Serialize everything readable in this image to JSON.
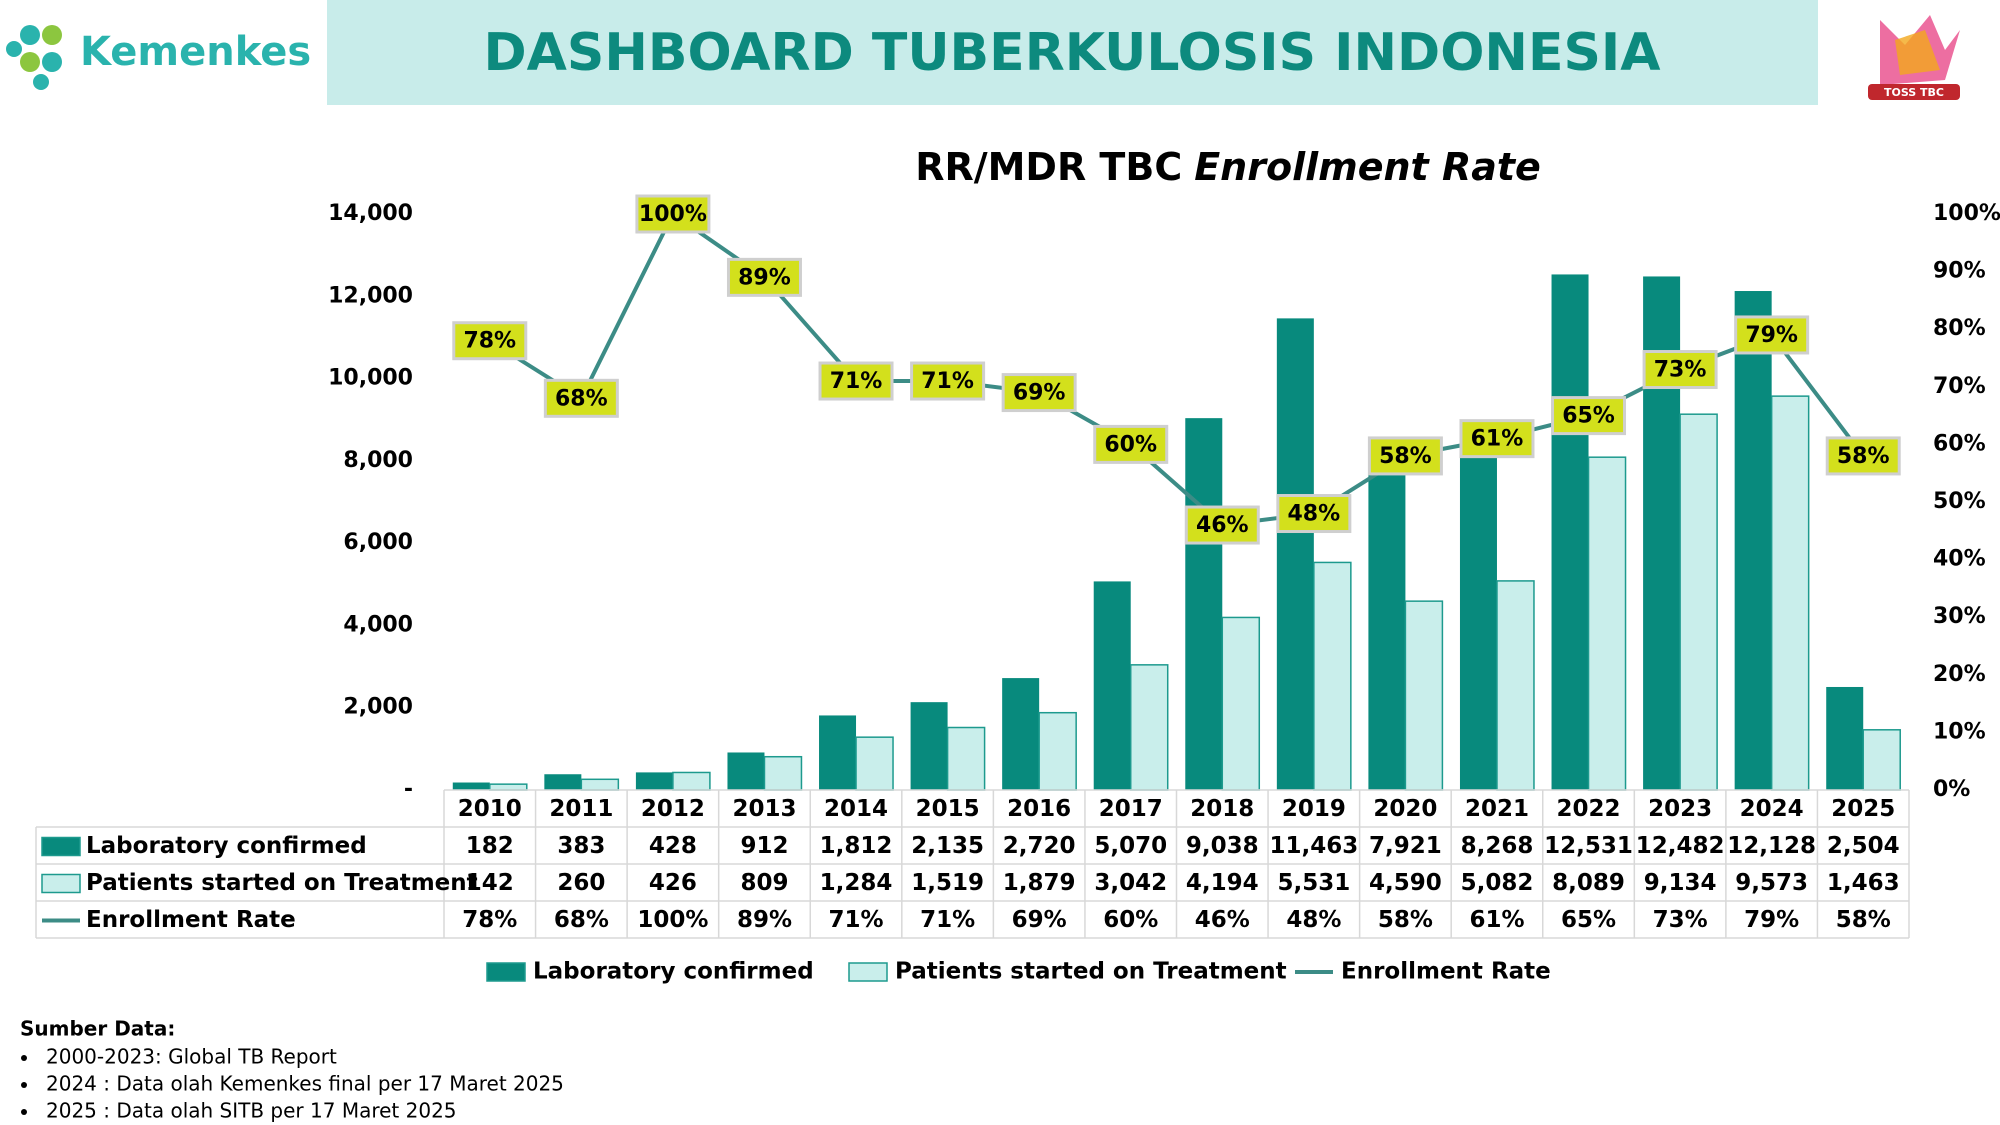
{
  "header": {
    "logo_text": "Kemenkes",
    "title": "DASHBOARD TUBERKULOSIS INDONESIA",
    "badge_text": "TOSS TBC"
  },
  "chart_data": {
    "type": "bar-line-table",
    "title_parts": [
      "RR/MDR TBC",
      "Enrollment Rate"
    ],
    "categories": [
      "2010",
      "2011",
      "2012",
      "2013",
      "2014",
      "2015",
      "2016",
      "2017",
      "2018",
      "2019",
      "2020",
      "2021",
      "2022",
      "2023",
      "2024",
      "2025"
    ],
    "series": [
      {
        "name": "Laboratory confirmed",
        "kind": "bar",
        "color": "#088a7d",
        "values": [
          182,
          383,
          428,
          912,
          1812,
          2135,
          2720,
          5070,
          9038,
          11463,
          7921,
          8268,
          12531,
          12482,
          12128,
          2504
        ],
        "value_labels": [
          "182",
          "383",
          "428",
          "912",
          "1,812",
          "2,135",
          "2,720",
          "5,070",
          "9,038",
          "11,463",
          "7,921",
          "8,268",
          "12,531",
          "12,482",
          "12,128",
          "2,504"
        ]
      },
      {
        "name": "Patients started on Treatment",
        "kind": "bar",
        "color": "#c9eeeb",
        "values": [
          142,
          260,
          426,
          809,
          1284,
          1519,
          1879,
          3042,
          4194,
          5531,
          4590,
          5082,
          8089,
          9134,
          9573,
          1463
        ],
        "value_labels": [
          "142",
          "260",
          "426",
          "809",
          "1,284",
          "1,519",
          "1,879",
          "3,042",
          "4,194",
          "5,531",
          "4,590",
          "5,082",
          "8,089",
          "9,134",
          "9,573",
          "1,463"
        ]
      },
      {
        "name": "Enrollment Rate",
        "kind": "line",
        "axis": "y2",
        "color": "#3c8c86",
        "values": [
          78,
          68,
          100,
          89,
          71,
          71,
          69,
          60,
          46,
          48,
          58,
          61,
          65,
          73,
          79,
          58
        ],
        "value_labels": [
          "78%",
          "68%",
          "100%",
          "89%",
          "71%",
          "71%",
          "69%",
          "60%",
          "46%",
          "48%",
          "58%",
          "61%",
          "65%",
          "73%",
          "79%",
          "58%"
        ]
      }
    ],
    "ylim": [
      0,
      14000
    ],
    "yticks": [
      {
        "value": 0,
        "label": "-"
      },
      {
        "value": 2000,
        "label": "2,000"
      },
      {
        "value": 4000,
        "label": "4,000"
      },
      {
        "value": 6000,
        "label": "6,000"
      },
      {
        "value": 8000,
        "label": "8,000"
      },
      {
        "value": 10000,
        "label": "10,000"
      },
      {
        "value": 12000,
        "label": "12,000"
      },
      {
        "value": 14000,
        "label": "14,000"
      }
    ],
    "y2lim": [
      0,
      100
    ],
    "y2ticks": [
      {
        "value": 0,
        "label": "0%"
      },
      {
        "value": 10,
        "label": "10%"
      },
      {
        "value": 20,
        "label": "20%"
      },
      {
        "value": 30,
        "label": "30%"
      },
      {
        "value": 40,
        "label": "40%"
      },
      {
        "value": 50,
        "label": "50%"
      },
      {
        "value": 60,
        "label": "60%"
      },
      {
        "value": 70,
        "label": "70%"
      },
      {
        "value": 80,
        "label": "80%"
      },
      {
        "value": 90,
        "label": "90%"
      },
      {
        "value": 100,
        "label": "100%"
      }
    ],
    "label_box_color": "#d3e01c"
  },
  "source": {
    "heading": "Sumber Data:",
    "items": [
      "2000-2023: Global TB Report",
      "2024 : Data olah Kemenkes final per 17 Maret 2025",
      "2025 : Data olah SITB per 17 Maret 2025"
    ]
  }
}
